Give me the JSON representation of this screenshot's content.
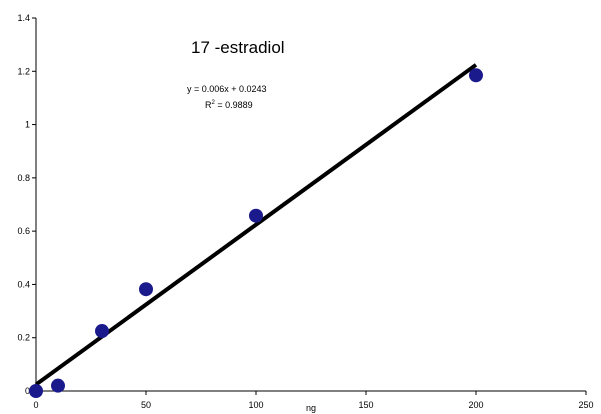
{
  "chart_data": {
    "type": "scatter",
    "title": "17 -estradiol",
    "xlabel": "ng",
    "ylabel": "",
    "xlim": [
      0,
      250
    ],
    "ylim": [
      0,
      1.4
    ],
    "x_ticks": [
      0,
      50,
      100,
      150,
      200,
      250
    ],
    "y_ticks": [
      0,
      0.2,
      0.4,
      0.6,
      0.8,
      1,
      1.2,
      1.4
    ],
    "x_tick_labels": [
      "0",
      "50",
      "100",
      "150",
      "200",
      "250"
    ],
    "y_tick_labels": [
      "0",
      "0.2",
      "0.4",
      "0.6",
      "0.8",
      "1",
      "1.2",
      "1.4"
    ],
    "grid": false,
    "series": [
      {
        "x": [
          0,
          10,
          30,
          50,
          100,
          200
        ],
        "y": [
          0.0,
          0.02,
          0.225,
          0.382,
          0.658,
          1.185
        ]
      }
    ],
    "trendline": {
      "slope": 0.006,
      "intercept": 0.0243,
      "x_range": [
        0,
        200
      ],
      "equation": "y = 0.006x + 0.0243",
      "r2_prefix": "R",
      "r2_sup": "2",
      "r2_value": " = 0.9889"
    },
    "colors": {
      "marker": "#1a1a8c",
      "trendline": "#000000",
      "axis": "#000000"
    }
  }
}
